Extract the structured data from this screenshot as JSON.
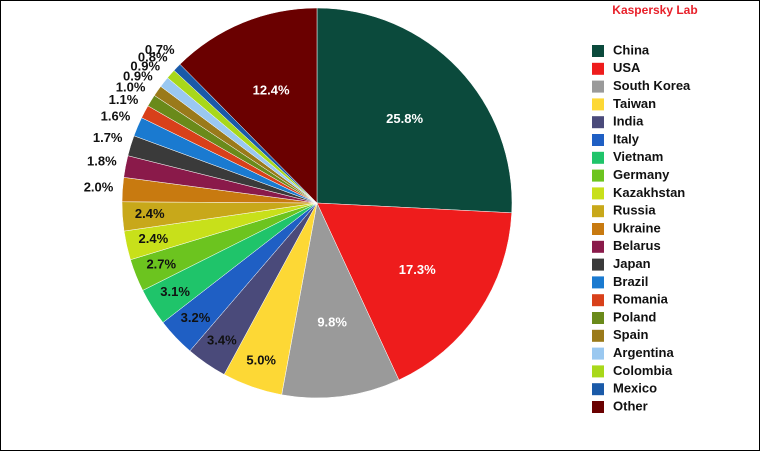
{
  "chart_data": {
    "type": "pie",
    "watermark": "Kaspersky Lab",
    "categories": [
      "China",
      "USA",
      "South Korea",
      "Taiwan",
      "India",
      "Italy",
      "Vietnam",
      "Germany",
      "Kazakhstan",
      "Russia",
      "Ukraine",
      "Belarus",
      "Japan",
      "Brazil",
      "Romania",
      "Poland",
      "Spain",
      "Argentina",
      "Colombia",
      "Mexico",
      "Other"
    ],
    "values": [
      25.8,
      17.3,
      9.8,
      5.0,
      3.4,
      3.2,
      3.1,
      2.7,
      2.4,
      2.4,
      2.0,
      1.8,
      1.7,
      1.6,
      1.1,
      1.0,
      0.9,
      0.9,
      0.8,
      0.7,
      12.4
    ],
    "value_labels": [
      "25.8%",
      "17.3%",
      "9.8%",
      "5.0%",
      "3.4%",
      "3.2%",
      "3.1%",
      "2.7%",
      "2.4%",
      "2.4%",
      "2.0%",
      "1.8%",
      "1.7%",
      "1.6%",
      "1.1%",
      "1.0%",
      "0.9%",
      "0.9%",
      "0.8%",
      "0.7%",
      "12.4%"
    ],
    "colors": [
      "#0b4a3c",
      "#ee1c1c",
      "#9a9a9a",
      "#fdd835",
      "#4a4a7a",
      "#1f5fc4",
      "#1fc46a",
      "#6cc41f",
      "#c8e01a",
      "#c8a81a",
      "#c87a10",
      "#8a1a4a",
      "#3a3a3a",
      "#1a7ad0",
      "#d8401a",
      "#6a8a1a",
      "#9a7a1a",
      "#9ac8f0",
      "#a8d81a",
      "#1a5aa8",
      "#6a0000"
    ]
  }
}
